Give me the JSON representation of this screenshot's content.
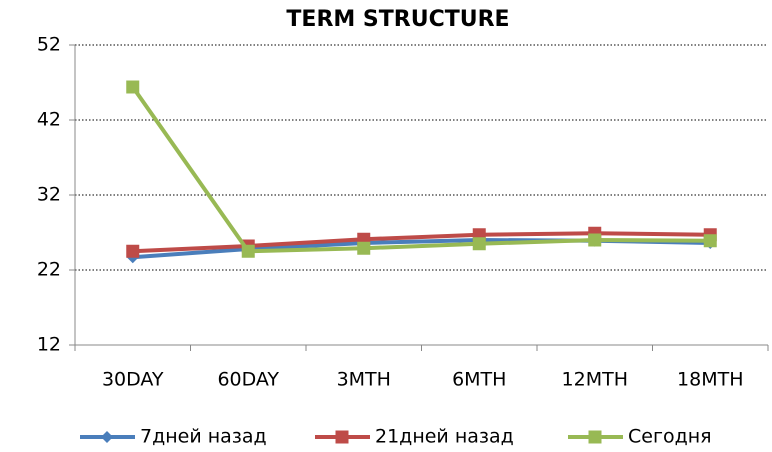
{
  "chart_data": {
    "type": "line",
    "title": "TERM STRUCTURE",
    "categories": [
      "30DAY",
      "60DAY",
      "3MTH",
      "6MTH",
      "12MTH",
      "18MTH"
    ],
    "series": [
      {
        "name": "7дней назад",
        "color": "#4a7ebb",
        "marker": "diamond",
        "values": [
          23.7,
          24.8,
          25.6,
          26.0,
          25.9,
          25.6
        ]
      },
      {
        "name": "21дней назад",
        "color": "#be4b48",
        "marker": "square",
        "values": [
          24.5,
          25.2,
          26.1,
          26.7,
          26.9,
          26.7
        ]
      },
      {
        "name": "Сегодня",
        "color": "#98b954",
        "marker": "square",
        "values": [
          46.4,
          24.5,
          24.9,
          25.5,
          26.0,
          25.9
        ]
      }
    ],
    "ylim": [
      12,
      52
    ],
    "yticks": [
      12,
      22,
      32,
      42,
      52
    ],
    "grid": true,
    "legend": "bottom"
  }
}
